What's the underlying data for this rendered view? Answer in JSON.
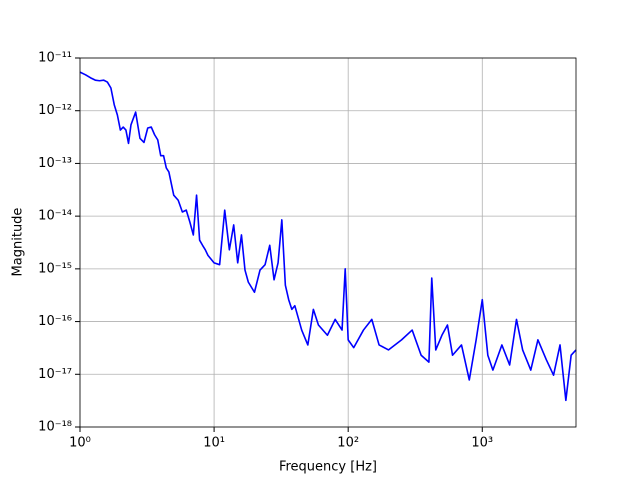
{
  "chart_data": {
    "type": "line",
    "xlabel": "Frequency [Hz]",
    "ylabel": "Magnitude",
    "xscale": "log",
    "yscale": "log",
    "grid": true,
    "color": "#0000ff",
    "x": [
      1,
      1.1,
      1.2,
      1.3,
      1.4,
      1.5,
      1.6,
      1.7,
      1.8,
      1.9,
      2.0,
      2.1,
      2.2,
      2.3,
      2.4,
      2.6,
      2.8,
      3.0,
      3.2,
      3.4,
      3.6,
      3.8,
      4.0,
      4.2,
      4.4,
      4.6,
      5.0,
      5.4,
      5.8,
      6.2,
      6.6,
      7.0,
      7.4,
      7.8,
      8.2,
      8.6,
      9,
      10,
      11,
      12,
      13,
      14,
      15,
      16,
      17,
      18,
      20,
      22,
      24,
      26,
      28,
      30,
      32,
      34,
      36,
      38,
      40,
      45,
      50,
      55,
      60,
      70,
      80,
      90,
      95,
      100,
      110,
      130,
      150,
      170,
      200,
      250,
      300,
      350,
      400,
      420,
      450,
      500,
      550,
      600,
      700,
      800,
      900,
      1000,
      1100,
      1200,
      1400,
      1600,
      1800,
      2000,
      2300,
      2600,
      3000,
      3400,
      3800,
      4200,
      4600,
      5000
    ],
    "values": [
      5.4e-12,
      4.8e-12,
      4.2e-12,
      3.8e-12,
      3.7e-12,
      3.8e-12,
      3.5e-12,
      2.7e-12,
      1.3e-12,
      8.3e-13,
      4.3e-13,
      4.9e-13,
      4.3e-13,
      2.4e-13,
      5.4e-13,
      9.4e-13,
      3e-13,
      2.5e-13,
      4.7e-13,
      4.9e-13,
      3.5e-13,
      2.8e-13,
      1.4e-13,
      1.4e-13,
      8.2e-14,
      6.9e-14,
      2.5e-14,
      2e-14,
      1.2e-14,
      1.3e-14,
      7.7e-15,
      4.4e-15,
      2.5e-14,
      3.5e-15,
      2.8e-15,
      2.3e-15,
      1.8e-15,
      1.3e-15,
      1.2e-15,
      1.3e-14,
      2.3e-15,
      6.8e-15,
      1.3e-15,
      4.4e-15,
      9.5e-16,
      5.6e-16,
      3.6e-16,
      9.5e-16,
      1.2e-15,
      2.8e-15,
      6.2e-16,
      1.3e-15,
      8.5e-15,
      4.9e-16,
      2.6e-16,
      1.7e-16,
      2e-16,
      6.9e-17,
      3.6e-17,
      1.7e-16,
      8.6e-17,
      5.5e-17,
      1.1e-16,
      6.9e-17,
      1e-15,
      4.5e-17,
      3.2e-17,
      6.9e-17,
      1.1e-16,
      3.6e-17,
      2.9e-17,
      4.5e-17,
      6.9e-17,
      2.3e-17,
      1.7e-17,
      6.7e-16,
      2.9e-17,
      5.5e-17,
      8.6e-17,
      2.3e-17,
      3.6e-17,
      7.8e-18,
      4.5e-17,
      2.6e-16,
      2.3e-17,
      1.2e-17,
      3.6e-17,
      1.5e-17,
      1.1e-16,
      2.9e-17,
      1.2e-17,
      4.5e-17,
      1.9e-17,
      9.6e-18,
      3.6e-17,
      3.2e-18,
      2.3e-17,
      2.9e-17
    ],
    "xlim": [
      1,
      5000
    ],
    "xticks": [
      {
        "value": 1,
        "label": "10⁰"
      },
      {
        "value": 10,
        "label": "10¹"
      },
      {
        "value": 100,
        "label": "10²"
      },
      {
        "value": 1000,
        "label": "10³"
      }
    ],
    "ylim": [
      1e-18,
      1e-11
    ],
    "yticks": [
      {
        "value": 1e-18,
        "label": "10⁻¹⁸"
      },
      {
        "value": 1e-17,
        "label": "10⁻¹⁷"
      },
      {
        "value": 1e-16,
        "label": "10⁻¹⁶"
      },
      {
        "value": 1e-15,
        "label": "10⁻¹⁵"
      },
      {
        "value": 1e-14,
        "label": "10⁻¹⁴"
      },
      {
        "value": 1e-13,
        "label": "10⁻¹³"
      },
      {
        "value": 1e-12,
        "label": "10⁻¹²"
      },
      {
        "value": 1e-11,
        "label": "10⁻¹¹"
      }
    ]
  }
}
